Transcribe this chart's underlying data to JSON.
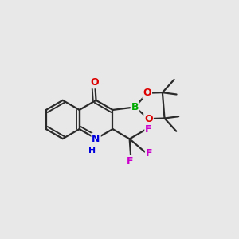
{
  "background_color": "#e8e8e8",
  "bond_color": "#2a2a2a",
  "bond_width": 1.6,
  "atom_colors": {
    "C": "#2a2a2a",
    "N": "#0000dd",
    "O": "#dd0000",
    "B": "#00aa00",
    "F": "#cc00cc"
  },
  "figsize": [
    3.0,
    3.0
  ],
  "dpi": 100,
  "xlim": [
    0,
    1
  ],
  "ylim": [
    0,
    1
  ]
}
